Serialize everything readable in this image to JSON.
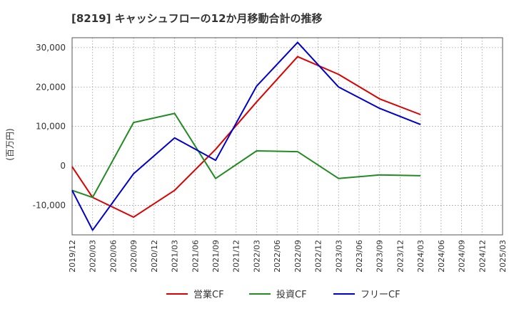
{
  "chart_data": {
    "type": "line",
    "title": "[8219]  キャッシュフローの12か月移動合計の推移",
    "ylabel": "(百万円)",
    "xlabel": "",
    "ylim": [
      -17500,
      32500
    ],
    "yticks": [
      -10000,
      0,
      10000,
      20000,
      30000
    ],
    "ytick_labels": [
      "-10,000",
      "0",
      "10,000",
      "20,000",
      "30,000"
    ],
    "categories": [
      "2019/12",
      "2020/03",
      "2020/06",
      "2020/09",
      "2020/12",
      "2021/03",
      "2021/06",
      "2021/09",
      "2021/12",
      "2022/03",
      "2022/06",
      "2022/09",
      "2022/12",
      "2023/03",
      "2023/06",
      "2023/09",
      "2023/12",
      "2024/03",
      "2024/06",
      "2024/09",
      "2024/12",
      "2025/03"
    ],
    "grid": true,
    "legend_position": "bottom",
    "series": [
      {
        "name": "営業CF",
        "color": "#dd0000",
        "values": [
          -200,
          -8000,
          null,
          -13000,
          null,
          -6200,
          null,
          4200,
          null,
          16200,
          null,
          27700,
          null,
          23200,
          null,
          17000,
          null,
          13000,
          null,
          null,
          null,
          null
        ]
      },
      {
        "name": "投資CF",
        "color": "#228b22",
        "values": [
          -6200,
          -8000,
          null,
          11000,
          null,
          13300,
          null,
          -3200,
          null,
          3800,
          null,
          3600,
          null,
          -3200,
          null,
          -2300,
          null,
          -2500,
          null,
          null,
          null,
          null
        ]
      },
      {
        "name": "フリーCF",
        "color": "#0000cc",
        "values": [
          -6200,
          -16300,
          null,
          -2000,
          null,
          7100,
          null,
          1400,
          null,
          20200,
          null,
          31300,
          null,
          20000,
          null,
          14600,
          null,
          10500,
          null,
          null,
          null,
          null
        ]
      }
    ]
  }
}
